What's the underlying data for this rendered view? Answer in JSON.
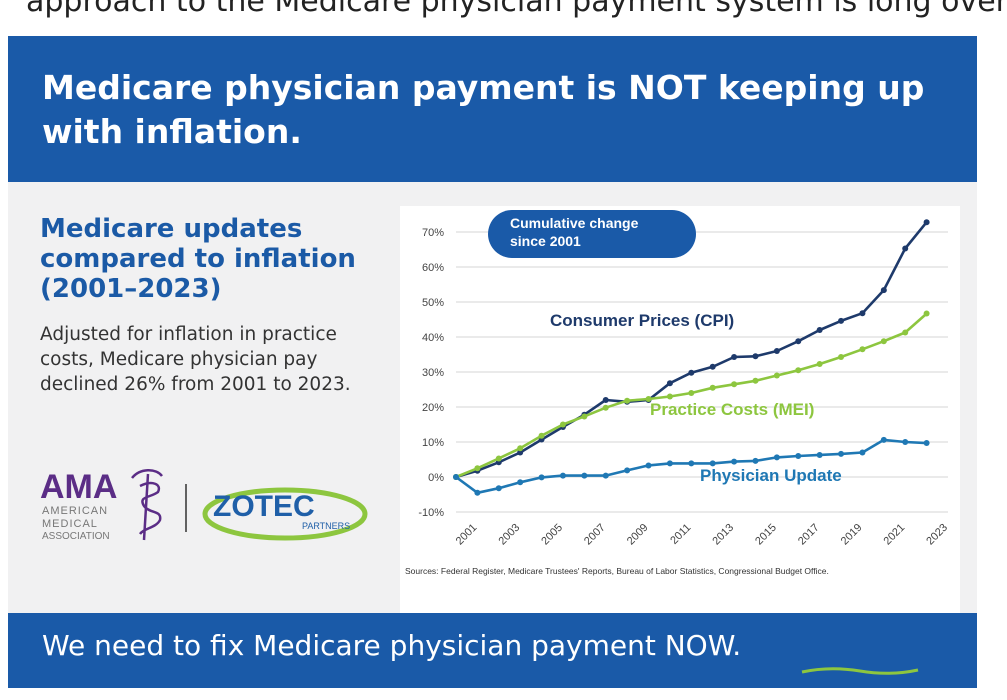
{
  "top_fragment": "approach to the Medicare physician payment system is long overdue.",
  "header": {
    "title": "Medicare physician payment is NOT keeping up with inflation."
  },
  "left": {
    "heading": "Medicare updates compared to inflation (2001–2023)",
    "body": "Adjusted for inflation in practice costs, Medicare physician pay declined 26% from 2001 to 2023."
  },
  "logos": {
    "ama_text": "AMA",
    "ama_sub": [
      "AMERICAN",
      "MEDICAL",
      "ASSOCIATION"
    ],
    "zotec_text": "ZOTEC",
    "zotec_sub": "PARTNERS"
  },
  "footer": {
    "message": "We need to fix Medicare physician payment NOW."
  },
  "colors": {
    "brand_blue": "#1a5aa8",
    "cpi": "#1e3a6b",
    "mei": "#8dc63f",
    "physician": "#1f78b4"
  },
  "chart_data": {
    "type": "line",
    "title": "Cumulative change since 2001",
    "annotation": "Cumulative change since 2001",
    "y_unit": "%",
    "ylim": [
      -10,
      70
    ],
    "yticks": [
      -10,
      0,
      10,
      20,
      30,
      40,
      50,
      60,
      70
    ],
    "ytick_labels": [
      "-10%",
      "0%",
      "10%",
      "20%",
      "30%",
      "40%",
      "50%",
      "60%",
      "70%"
    ],
    "xlim": [
      2001,
      2023
    ],
    "xtick_labels": [
      "2001",
      "2003",
      "2005",
      "2007",
      "2009",
      "2011",
      "2013",
      "2015",
      "2017",
      "2019",
      "2021",
      "2023"
    ],
    "grid": true,
    "source": "Sources: Federal Register, Medicare Trustees' Reports, Bureau of Labor Statistics, Congressional Budget Office.",
    "series": [
      {
        "name": "Consumer Prices (CPI)",
        "color": "#1e3a6b",
        "points": [
          [
            2000,
            0
          ],
          [
            2001,
            1.8
          ],
          [
            2002,
            4.2
          ],
          [
            2003,
            7
          ],
          [
            2004,
            10.7
          ],
          [
            2005,
            14.3
          ],
          [
            2006,
            17.8
          ],
          [
            2007,
            22
          ],
          [
            2008,
            21.5
          ],
          [
            2009,
            22
          ],
          [
            2010,
            26.8
          ],
          [
            2011,
            29.8
          ],
          [
            2012,
            31.5
          ],
          [
            2013,
            34.3
          ],
          [
            2014,
            34.5
          ],
          [
            2015,
            36
          ],
          [
            2016,
            38.8
          ],
          [
            2017,
            42
          ],
          [
            2018,
            44.6
          ],
          [
            2019,
            46.8
          ],
          [
            2020,
            53.4
          ],
          [
            2021,
            65.3
          ],
          [
            2022,
            72.8
          ]
        ]
      },
      {
        "name": "Practice Costs (MEI)",
        "color": "#8dc63f",
        "points": [
          [
            2000,
            0
          ],
          [
            2001,
            2.5
          ],
          [
            2002,
            5.3
          ],
          [
            2003,
            8.2
          ],
          [
            2004,
            11.8
          ],
          [
            2005,
            15
          ],
          [
            2006,
            17.3
          ],
          [
            2007,
            19.8
          ],
          [
            2008,
            21.8
          ],
          [
            2009,
            22.3
          ],
          [
            2010,
            23
          ],
          [
            2011,
            24
          ],
          [
            2012,
            25.5
          ],
          [
            2013,
            26.5
          ],
          [
            2014,
            27.5
          ],
          [
            2015,
            29
          ],
          [
            2016,
            30.5
          ],
          [
            2017,
            32.3
          ],
          [
            2018,
            34.3
          ],
          [
            2019,
            36.5
          ],
          [
            2020,
            38.8
          ],
          [
            2021,
            41.3
          ],
          [
            2022,
            46.7
          ]
        ]
      },
      {
        "name": "Physician Update",
        "color": "#1f78b4",
        "points": [
          [
            2000,
            0
          ],
          [
            2001,
            -4.5
          ],
          [
            2002,
            -3.2
          ],
          [
            2003,
            -1.5
          ],
          [
            2004,
            -0.1
          ],
          [
            2005,
            0.4
          ],
          [
            2006,
            0.4
          ],
          [
            2007,
            0.4
          ],
          [
            2008,
            1.9
          ],
          [
            2009,
            3.3
          ],
          [
            2010,
            3.9
          ],
          [
            2011,
            3.9
          ],
          [
            2012,
            3.9
          ],
          [
            2013,
            4.4
          ],
          [
            2014,
            4.6
          ],
          [
            2015,
            5.6
          ],
          [
            2016,
            6
          ],
          [
            2017,
            6.3
          ],
          [
            2018,
            6.6
          ],
          [
            2019,
            7
          ],
          [
            2020,
            10.6
          ],
          [
            2021,
            10
          ],
          [
            2022,
            9.7
          ]
        ]
      }
    ]
  }
}
